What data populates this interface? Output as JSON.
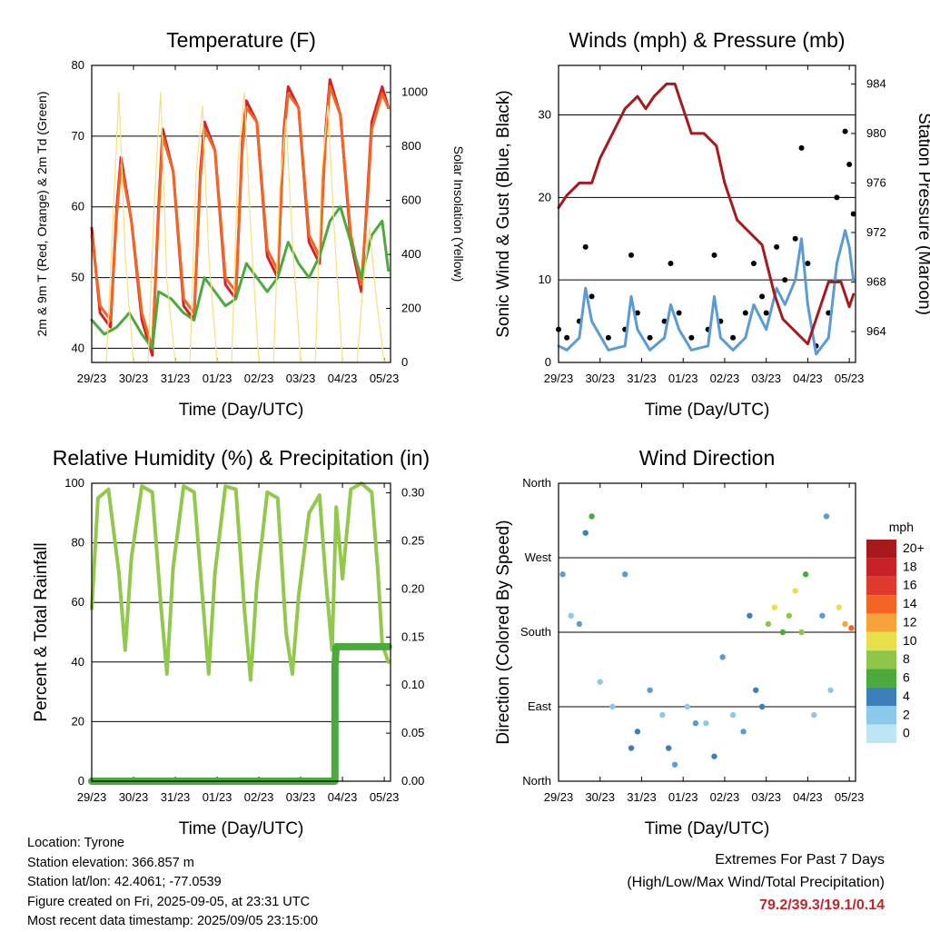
{
  "panels": {
    "temperature": {
      "title": "Temperature (F)",
      "xlabel": "Time (Day/UTC)",
      "ylabel_left": "2m & 9m T (Red, Orange) & 2m Td (Green)",
      "ylabel_right": "Solar Insolation (Yellow)"
    },
    "wind": {
      "title": "Winds (mph) & Pressure (mb)",
      "xlabel": "Time (Day/UTC)",
      "ylabel_left": "Sonic Wind & Gust (Blue, Black)",
      "ylabel_right": "Station Pressure (Maroon)"
    },
    "humidity": {
      "title": "Relative Humidity (%) & Precipitation (in)",
      "xlabel": "Time (Day/UTC)",
      "ylabel_left": "Percent & Total Rainfall"
    },
    "direction": {
      "title": "Wind Direction",
      "xlabel": "Time (Day/UTC)",
      "ylabel_left": "Direction (Colored By Speed)",
      "colorbar_title": "mph"
    }
  },
  "info": {
    "location": "Location: Tyrone",
    "elevation": "Station elevation: 366.857 m",
    "latlon": "Station lat/lon: 42.4061; -77.0539",
    "created": "Figure created on Fri, 2025-09-05, at 23:31 UTC",
    "recent": "Most recent data timestamp: 2025/09/05 23:15:00"
  },
  "extremes": {
    "line1": "Extremes For Past 7 Days",
    "line2": "(High/Low/Max Wind/Total Precipitation)",
    "values": "79.2/39.3/19.1/0.14"
  },
  "colors": {
    "temp2m": "#d42027",
    "temp9m": "#f26522",
    "dewpoint": "#4aab3c",
    "solar": "#f7e07e",
    "gust": "#000000",
    "wind": "#5b9bd5",
    "pressure": "#a8191c",
    "rh": "#92c84c",
    "precip": "#4aab3c"
  },
  "chart_data": [
    {
      "type": "line",
      "title": "Temperature (F)",
      "xlabel": "Time (Day/UTC)",
      "x_ticks": [
        "29/23",
        "30/23",
        "31/23",
        "01/23",
        "02/23",
        "03/23",
        "04/23",
        "05/23"
      ],
      "xlim": [
        0,
        7.15
      ],
      "ylim": [
        38,
        80
      ],
      "y_ticks": [
        40,
        50,
        60,
        70,
        80
      ],
      "y2lim": [
        0,
        1100
      ],
      "y2_ticks": [
        0,
        200,
        400,
        600,
        800,
        1000
      ],
      "grid": true,
      "series": [
        {
          "name": "2m T",
          "color": "#d42027",
          "x": [
            0,
            0.2,
            0.45,
            0.6,
            0.7,
            0.95,
            1.2,
            1.45,
            1.6,
            1.7,
            1.95,
            2.2,
            2.45,
            2.6,
            2.7,
            2.95,
            3.2,
            3.45,
            3.6,
            3.7,
            3.95,
            4.2,
            4.45,
            4.6,
            4.7,
            4.95,
            5.2,
            5.45,
            5.6,
            5.7,
            5.95,
            6.2,
            6.45,
            6.6,
            6.7,
            6.95,
            7.1
          ],
          "values": [
            57,
            45,
            43,
            60,
            67,
            58,
            44,
            39,
            60,
            71,
            65,
            46,
            44,
            65,
            72,
            68,
            49,
            47,
            69,
            75,
            72,
            53,
            50,
            71,
            77,
            74,
            55,
            52,
            71,
            78,
            73,
            55,
            48,
            62,
            72,
            77,
            74
          ]
        },
        {
          "name": "9m T",
          "color": "#f26522",
          "x": [
            0,
            0.2,
            0.45,
            0.6,
            0.7,
            0.95,
            1.2,
            1.45,
            1.6,
            1.7,
            1.95,
            2.2,
            2.45,
            2.6,
            2.7,
            2.95,
            3.2,
            3.45,
            3.6,
            3.7,
            3.95,
            4.2,
            4.45,
            4.6,
            4.7,
            4.95,
            5.2,
            5.45,
            5.6,
            5.7,
            5.95,
            6.2,
            6.45,
            6.6,
            6.7,
            6.95,
            7.1
          ],
          "values": [
            56,
            46,
            44,
            59,
            66,
            58,
            45,
            40,
            59,
            70,
            65,
            47,
            45,
            64,
            71,
            68,
            50,
            48,
            68,
            74,
            72,
            54,
            51,
            70,
            76,
            74,
            56,
            53,
            70,
            77,
            73,
            56,
            49,
            61,
            71,
            76,
            74
          ]
        },
        {
          "name": "2m Td",
          "color": "#4aab3c",
          "x": [
            0,
            0.3,
            0.6,
            0.9,
            1.2,
            1.45,
            1.6,
            1.9,
            2.2,
            2.45,
            2.7,
            2.95,
            3.2,
            3.45,
            3.7,
            3.95,
            4.2,
            4.45,
            4.7,
            4.95,
            5.2,
            5.45,
            5.7,
            5.95,
            6.2,
            6.45,
            6.7,
            6.95,
            7.1
          ],
          "values": [
            44,
            42,
            43,
            45,
            42,
            40,
            48,
            47,
            45,
            44,
            50,
            48,
            46,
            47,
            52,
            50,
            48,
            50,
            55,
            52,
            50,
            53,
            58,
            60,
            55,
            50,
            56,
            58,
            51
          ]
        },
        {
          "name": "Solar Insolation",
          "color": "#f7e07e",
          "axis": "right",
          "x": [
            0,
            0.35,
            0.5,
            0.65,
            0.8,
            1.0,
            1.35,
            1.5,
            1.65,
            1.8,
            2.0,
            2.35,
            2.5,
            2.65,
            2.8,
            3.0,
            3.35,
            3.5,
            3.65,
            3.8,
            4.0,
            4.35,
            4.5,
            4.65,
            4.8,
            5.0,
            5.35,
            5.5,
            5.65,
            5.8,
            6.0,
            6.35,
            6.5,
            6.65,
            6.8,
            7.0,
            7.1
          ],
          "values": [
            0,
            0,
            500,
            1000,
            400,
            0,
            0,
            600,
            1000,
            300,
            0,
            0,
            700,
            950,
            400,
            0,
            0,
            750,
            1000,
            500,
            0,
            0,
            650,
            900,
            450,
            0,
            0,
            700,
            950,
            500,
            0,
            0,
            300,
            500,
            250,
            0,
            0
          ]
        }
      ]
    },
    {
      "type": "line",
      "title": "Winds (mph) & Pressure (mb)",
      "xlabel": "Time (Day/UTC)",
      "x_ticks": [
        "29/23",
        "30/23",
        "31/23",
        "01/23",
        "02/23",
        "03/23",
        "04/23",
        "05/23"
      ],
      "xlim": [
        0,
        7.15
      ],
      "ylim": [
        0,
        36
      ],
      "y_ticks": [
        0,
        10,
        20,
        30
      ],
      "y2lim": [
        961.5,
        985.5
      ],
      "y2_ticks": [
        964,
        968,
        972,
        976,
        980,
        984
      ],
      "grid": true,
      "series": [
        {
          "name": "Gust",
          "color": "#000000",
          "x": [
            0,
            0.2,
            0.5,
            0.65,
            0.8,
            1.2,
            1.6,
            1.75,
            1.9,
            2.2,
            2.55,
            2.7,
            2.9,
            3.2,
            3.6,
            3.75,
            3.9,
            4.2,
            4.5,
            4.7,
            4.9,
            5.0,
            5.25,
            5.45,
            5.7,
            5.85,
            6.0,
            6.2,
            6.5,
            6.7,
            6.9,
            7.0,
            7.1
          ],
          "values": [
            4,
            3,
            5,
            14,
            8,
            3,
            4,
            13,
            6,
            3,
            5,
            12,
            6,
            3,
            4,
            13,
            5,
            3,
            6,
            12,
            8,
            6,
            14,
            10,
            15,
            26,
            12,
            2,
            6,
            20,
            28,
            24,
            18
          ]
        },
        {
          "name": "Wind",
          "color": "#5b9bd5",
          "x": [
            0,
            0.2,
            0.5,
            0.65,
            0.8,
            1.2,
            1.6,
            1.75,
            1.9,
            2.2,
            2.55,
            2.7,
            2.9,
            3.2,
            3.6,
            3.75,
            3.9,
            4.2,
            4.5,
            4.7,
            4.9,
            5.0,
            5.25,
            5.45,
            5.7,
            5.85,
            6.0,
            6.2,
            6.5,
            6.7,
            6.9,
            7.0,
            7.1
          ],
          "values": [
            2,
            1.5,
            3,
            9,
            5,
            1.5,
            2,
            8,
            4,
            1.5,
            3,
            7,
            4,
            1.5,
            2,
            8,
            3,
            1.5,
            3,
            7,
            5,
            4,
            9,
            7,
            10,
            15,
            7,
            1,
            3,
            12,
            16,
            14,
            10
          ]
        },
        {
          "name": "Station Pressure",
          "color": "#a8191c",
          "axis": "right",
          "x": [
            0,
            0.2,
            0.5,
            0.8,
            1.0,
            1.3,
            1.6,
            1.9,
            2.1,
            2.3,
            2.6,
            2.8,
            3.0,
            3.2,
            3.5,
            3.8,
            4.0,
            4.3,
            4.6,
            4.9,
            5.2,
            5.4,
            5.7,
            6.0,
            6.2,
            6.5,
            6.8,
            7.0,
            7.1
          ],
          "values": [
            974,
            975,
            976,
            976,
            978,
            980,
            982,
            983,
            982,
            983,
            984,
            984,
            982,
            980,
            980,
            979,
            976,
            973,
            972,
            971,
            967,
            965,
            964,
            963,
            965,
            968,
            968,
            966,
            967
          ]
        }
      ]
    },
    {
      "type": "line",
      "title": "Relative Humidity (%) & Precipitation (in)",
      "xlabel": "Time (Day/UTC)",
      "x_ticks": [
        "29/23",
        "30/23",
        "31/23",
        "01/23",
        "02/23",
        "03/23",
        "04/23",
        "05/23"
      ],
      "xlim": [
        0,
        7.15
      ],
      "ylim": [
        0,
        100
      ],
      "y_ticks": [
        0,
        20,
        40,
        60,
        80,
        100
      ],
      "y2lim": [
        0,
        0.31
      ],
      "y2_ticks": [
        0.0,
        0.05,
        0.1,
        0.15,
        0.2,
        0.25,
        0.3
      ],
      "grid": true,
      "series": [
        {
          "name": "RH",
          "color": "#92c84c",
          "x": [
            0,
            0.15,
            0.4,
            0.65,
            0.8,
            0.95,
            1.2,
            1.45,
            1.65,
            1.8,
            1.95,
            2.2,
            2.45,
            2.65,
            2.8,
            2.95,
            3.2,
            3.45,
            3.65,
            3.8,
            3.95,
            4.2,
            4.45,
            4.65,
            4.8,
            4.95,
            5.2,
            5.45,
            5.6,
            5.75,
            5.85,
            6.0,
            6.2,
            6.45,
            6.7,
            6.85,
            6.95,
            7.1
          ],
          "values": [
            58,
            95,
            98,
            70,
            44,
            75,
            99,
            97,
            60,
            36,
            72,
            99,
            97,
            62,
            36,
            70,
            99,
            98,
            58,
            34,
            66,
            97,
            95,
            50,
            36,
            62,
            90,
            96,
            68,
            44,
            92,
            68,
            98,
            100,
            97,
            70,
            46,
            40
          ]
        },
        {
          "name": "Total Precipitation",
          "color": "#4aab3c",
          "axis": "right",
          "x": [
            0,
            1,
            2,
            3,
            4,
            5,
            5.82,
            5.82,
            5.82,
            5.85,
            6.0,
            6.5,
            7.0,
            7.1
          ],
          "values": [
            0,
            0,
            0,
            0,
            0,
            0,
            0,
            0.05,
            0.12,
            0.14,
            0.14,
            0.14,
            0.14,
            0.14
          ]
        }
      ]
    },
    {
      "type": "scatter",
      "title": "Wind Direction",
      "xlabel": "Time (Day/UTC)",
      "x_ticks": [
        "29/23",
        "30/23",
        "31/23",
        "01/23",
        "02/23",
        "03/23",
        "04/23",
        "05/23"
      ],
      "xlim": [
        0,
        7.15
      ],
      "y_ticks": [
        "North",
        "East",
        "South",
        "West",
        "North"
      ],
      "ylim": [
        0,
        360
      ],
      "grid": true,
      "colorbar": {
        "title": "mph",
        "labels": [
          "20+",
          "18",
          "16",
          "14",
          "12",
          "10",
          "8",
          "6",
          "4",
          "2",
          "0"
        ]
      },
      "series": [
        {
          "name": "Direction",
          "x": [
            0.1,
            0.3,
            0.5,
            0.65,
            0.8,
            1.0,
            1.3,
            1.6,
            1.75,
            1.9,
            2.2,
            2.5,
            2.65,
            2.8,
            3.1,
            3.3,
            3.55,
            3.75,
            3.95,
            4.2,
            4.45,
            4.6,
            4.75,
            4.9,
            5.05,
            5.2,
            5.4,
            5.55,
            5.7,
            5.85,
            5.95,
            6.15,
            6.35,
            6.45,
            6.55,
            6.75,
            6.9,
            7.05
          ],
          "values": [
            250,
            200,
            190,
            300,
            320,
            120,
            90,
            250,
            40,
            60,
            110,
            80,
            40,
            20,
            90,
            70,
            70,
            30,
            150,
            80,
            60,
            200,
            110,
            90,
            190,
            210,
            180,
            200,
            230,
            180,
            250,
            80,
            200,
            320,
            110,
            210,
            190,
            185
          ],
          "speeds": [
            3,
            2,
            3,
            6,
            8,
            2,
            1,
            3,
            6,
            5,
            3,
            2,
            5,
            4,
            2,
            3,
            2,
            5,
            4,
            2,
            3,
            5,
            6,
            5,
            9,
            11,
            8,
            10,
            12,
            10,
            8,
            2,
            4,
            3,
            2,
            12,
            14,
            15
          ]
        }
      ]
    }
  ]
}
